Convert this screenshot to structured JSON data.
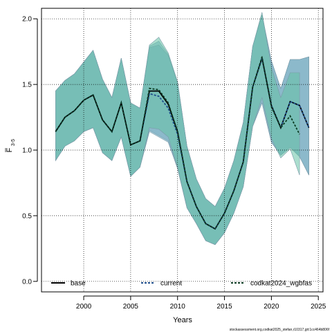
{
  "chart_data": {
    "type": "area",
    "xlabel": "Years",
    "ylabel_main": "F",
    "ylabel_sub": "3-5",
    "xlim": [
      1995.5,
      2025.5
    ],
    "ylim": [
      -0.08,
      2.08
    ],
    "x_ticks": [
      2000,
      2005,
      2010,
      2015,
      2020,
      2025
    ],
    "y_ticks": [
      0.0,
      0.5,
      1.0,
      1.5,
      2.0
    ],
    "y_tick_labels": [
      "0.0",
      "0.5",
      "1.0",
      "1.5",
      "2.0"
    ],
    "grid": true,
    "legend_position": "bottom",
    "series": [
      {
        "name": "base",
        "color": "#000000",
        "fill": "#6fa7bd",
        "line_style": "solid",
        "x": [
          1997,
          1998,
          1999,
          2000,
          2001,
          2002,
          2003,
          2004,
          2005,
          2006,
          2007,
          2008,
          2009,
          2010,
          2011,
          2012,
          2013,
          2014,
          2015,
          2016,
          2017,
          2018,
          2019,
          2020,
          2021,
          2022,
          2023,
          2024
        ],
        "values": [
          1.14,
          1.25,
          1.3,
          1.38,
          1.42,
          1.23,
          1.14,
          1.36,
          1.04,
          1.07,
          1.45,
          1.45,
          1.35,
          1.14,
          0.76,
          0.57,
          0.44,
          0.4,
          0.52,
          0.69,
          0.91,
          1.48,
          1.7,
          1.34,
          1.17,
          1.37,
          1.34,
          1.17
        ],
        "lower": [
          0.92,
          1.03,
          1.07,
          1.14,
          1.17,
          0.98,
          0.92,
          1.1,
          0.8,
          0.87,
          1.15,
          1.11,
          1.07,
          0.86,
          0.56,
          0.44,
          0.31,
          0.28,
          0.37,
          0.52,
          0.72,
          1.18,
          1.36,
          1.06,
          0.96,
          1.02,
          0.95,
          0.81
        ],
        "upper": [
          1.45,
          1.53,
          1.58,
          1.67,
          1.76,
          1.54,
          1.4,
          1.7,
          1.36,
          1.32,
          1.79,
          1.83,
          1.73,
          1.52,
          1.03,
          0.78,
          0.63,
          0.57,
          0.71,
          0.92,
          1.21,
          1.79,
          2.03,
          1.68,
          1.47,
          1.69,
          1.69,
          1.71
        ]
      },
      {
        "name": "current",
        "color": "#1f4e8c",
        "fill": "#6fa7bd",
        "line_style": "dashed",
        "x": [
          1997,
          1998,
          1999,
          2000,
          2001,
          2002,
          2003,
          2004,
          2005,
          2006,
          2007,
          2008,
          2009,
          2010,
          2011,
          2012,
          2013,
          2014,
          2015,
          2016,
          2017,
          2018,
          2019,
          2020,
          2021,
          2022,
          2023,
          2024
        ],
        "values": [
          1.14,
          1.25,
          1.3,
          1.38,
          1.42,
          1.23,
          1.14,
          1.36,
          1.04,
          1.07,
          1.43,
          1.41,
          1.32,
          1.12,
          0.76,
          0.57,
          0.44,
          0.4,
          0.52,
          0.69,
          0.91,
          1.48,
          1.7,
          1.34,
          1.17,
          1.37,
          1.34,
          1.17
        ],
        "lower": [
          0.92,
          1.03,
          1.07,
          1.14,
          1.17,
          0.98,
          0.92,
          1.1,
          0.8,
          0.87,
          1.14,
          1.1,
          1.06,
          0.86,
          0.56,
          0.44,
          0.31,
          0.28,
          0.37,
          0.52,
          0.72,
          1.18,
          1.36,
          1.06,
          0.96,
          1.02,
          0.95,
          0.81
        ],
        "upper": [
          1.45,
          1.53,
          1.58,
          1.67,
          1.76,
          1.54,
          1.4,
          1.7,
          1.36,
          1.32,
          1.78,
          1.8,
          1.72,
          1.51,
          1.03,
          0.78,
          0.63,
          0.57,
          0.71,
          0.92,
          1.21,
          1.79,
          2.03,
          1.68,
          1.47,
          1.69,
          1.69,
          1.71
        ]
      },
      {
        "name": "codkat2024_wgbfas",
        "color": "#0b3b22",
        "fill": "#66c2a5",
        "line_style": "dashed",
        "x": [
          1997,
          1998,
          1999,
          2000,
          2001,
          2002,
          2003,
          2004,
          2005,
          2006,
          2007,
          2008,
          2009,
          2010,
          2011,
          2012,
          2013,
          2014,
          2015,
          2016,
          2017,
          2018,
          2019,
          2020,
          2021,
          2022,
          2023
        ],
        "values": [
          1.14,
          1.25,
          1.3,
          1.38,
          1.42,
          1.23,
          1.14,
          1.36,
          1.04,
          1.07,
          1.47,
          1.46,
          1.36,
          1.14,
          0.76,
          0.57,
          0.44,
          0.4,
          0.52,
          0.69,
          0.91,
          1.48,
          1.71,
          1.33,
          1.17,
          1.26,
          1.12
        ],
        "lower": [
          0.92,
          1.03,
          1.07,
          1.14,
          1.17,
          0.98,
          0.92,
          1.1,
          0.8,
          0.87,
          1.17,
          1.16,
          1.1,
          0.87,
          0.56,
          0.44,
          0.31,
          0.28,
          0.37,
          0.52,
          0.72,
          1.18,
          1.4,
          1.09,
          0.94,
          1.01,
          0.81
        ],
        "upper": [
          1.45,
          1.53,
          1.58,
          1.67,
          1.76,
          1.54,
          1.4,
          1.7,
          1.36,
          1.32,
          1.8,
          1.86,
          1.74,
          1.52,
          1.03,
          0.78,
          0.63,
          0.57,
          0.71,
          0.92,
          1.21,
          1.79,
          2.05,
          1.63,
          1.4,
          1.59,
          1.59
        ]
      }
    ]
  },
  "footer_text": "stockassessment.org,codkat2025_stefan,r10317,git:1cc464b806f"
}
